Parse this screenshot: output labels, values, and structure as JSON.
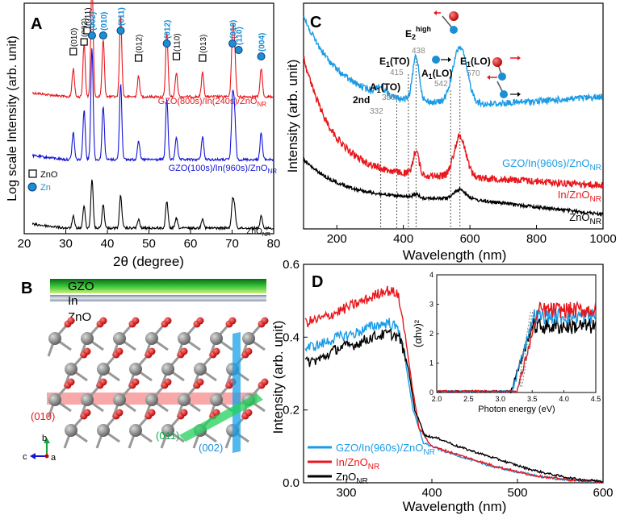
{
  "chart_data": [
    {
      "panel": "A",
      "type": "line",
      "panel_label": "A",
      "xlabel": "2θ (degree)",
      "ylabel": "Log scale Intensity (arb. unit)",
      "xlim": [
        20,
        80
      ],
      "xticks": [
        20,
        30,
        40,
        50,
        60,
        70,
        80
      ],
      "legend": [
        {
          "marker": "square",
          "label": "ZnO",
          "color": "#000000"
        },
        {
          "marker": "circle",
          "label": "Zn",
          "color": "#1a8fd6"
        }
      ],
      "series": [
        {
          "name": "GZO(800s)/In(240s)/ZnO_NR",
          "label_main": "GZO(800s)/In(240s)/ZnO",
          "label_sub": "NR",
          "color": "#e8171c",
          "offset": 2
        },
        {
          "name": "GZO(100s)/In(960s)/ZnO_NR",
          "label_main": "GZO(100s)/In(960s)/ZnO",
          "label_sub": "NR",
          "color": "#1414d6",
          "offset": 1
        },
        {
          "name": "ZnO_NR",
          "label_main": "ZnO",
          "label_sub": "NR",
          "color": "#000000",
          "offset": 0
        }
      ],
      "zno_peaks": [
        {
          "x": 31.8,
          "label": "(010)",
          "h": 0.35
        },
        {
          "x": 34.4,
          "label": "(002)",
          "h": 0.65
        },
        {
          "x": 36.3,
          "label": "(011)",
          "h": 0.7
        },
        {
          "x": 47.5,
          "label": "(012)",
          "h": 0.25
        },
        {
          "x": 56.6,
          "label": "(110)",
          "h": 0.3
        },
        {
          "x": 62.9,
          "label": "(013)",
          "h": 0.3
        }
      ],
      "zn_peaks": [
        {
          "x": 36.3,
          "label": "(002)",
          "h": 0.75
        },
        {
          "x": 39.0,
          "label": "(010)",
          "h": 0.7
        },
        {
          "x": 43.2,
          "label": "(011)",
          "h": 1.0
        },
        {
          "x": 54.3,
          "label": "(012)",
          "h": 0.8
        },
        {
          "x": 70.1,
          "label": "(013)",
          "h": 0.75
        },
        {
          "x": 70.6,
          "label": "(110)",
          "h": 0.55
        },
        {
          "x": 77.0,
          "label": "(004)",
          "h": 0.35
        }
      ]
    },
    {
      "panel": "B",
      "type": "diagram",
      "panel_label": "B",
      "layers": [
        "GZO",
        "In",
        "ZnO"
      ],
      "planes": [
        {
          "label": "(010)",
          "color": "#e8171c"
        },
        {
          "label": "(011)",
          "color": "#22c25a"
        },
        {
          "label": "(002)",
          "color": "#1a8fd6"
        }
      ],
      "axes": [
        "b",
        "c",
        "a"
      ]
    },
    {
      "panel": "C",
      "type": "line",
      "panel_label": "C",
      "xlabel": "Wavelength (nm)",
      "ylabel": "Intensity (arb. unit)",
      "xlim": [
        100,
        1000
      ],
      "xticks": [
        200,
        400,
        600,
        800,
        1000
      ],
      "modes": [
        {
          "label": "2nd",
          "value": "332",
          "x": 332
        },
        {
          "label": "A1(TO)",
          "value": "380",
          "x": 380
        },
        {
          "label": "E1(TO)",
          "value": "415",
          "x": 415
        },
        {
          "label": "E2high",
          "value": "438",
          "x": 438
        },
        {
          "label": "A1(LO)",
          "value": "542",
          "x": 542
        },
        {
          "label": "E1(LO)",
          "value": "570",
          "x": 570
        }
      ],
      "series": [
        {
          "name": "GZO/In(960s)/ZnO_NR",
          "label_main": "GZO/In(960s)/ZnO",
          "label_sub": "NR",
          "color": "#1a9be6"
        },
        {
          "name": "In/ZnO_NR",
          "label_main": "In/ZnO",
          "label_sub": "NR",
          "color": "#e8171c"
        },
        {
          "name": "ZnO_NR",
          "label_main": "ZnO",
          "label_sub": "NR",
          "color": "#000000"
        }
      ]
    },
    {
      "panel": "D",
      "type": "line",
      "panel_label": "D",
      "xlabel": "Wavelength (nm)",
      "ylabel": "Intensity (arb. unit)",
      "xlim": [
        250,
        600
      ],
      "ylim": [
        0.0,
        0.6
      ],
      "xticks": [
        300,
        400,
        500,
        600
      ],
      "yticks": [
        "0.0",
        "0.2",
        "0.4",
        "0.6"
      ],
      "series": [
        {
          "name": "GZO/In(960s)/ZnO_NR",
          "label_main": "GZO/In(960s)/ZnO",
          "label_sub": "NR",
          "color": "#1a9be6",
          "points": [
            [
              252,
              0.37
            ],
            [
              270,
              0.38
            ],
            [
              290,
              0.4
            ],
            [
              310,
              0.41
            ],
            [
              330,
              0.43
            ],
            [
              350,
              0.44
            ],
            [
              362,
              0.42
            ],
            [
              370,
              0.32
            ],
            [
              378,
              0.2
            ],
            [
              390,
              0.11
            ],
            [
              410,
              0.09
            ],
            [
              430,
              0.075
            ],
            [
              450,
              0.06
            ],
            [
              470,
              0.045
            ],
            [
              490,
              0.035
            ],
            [
              510,
              0.025
            ],
            [
              530,
              0.016
            ],
            [
              550,
              0.01
            ],
            [
              570,
              0.006
            ],
            [
              600,
              0.003
            ]
          ]
        },
        {
          "name": "In/ZnO_NR",
          "label_main": "In/ZnO",
          "label_sub": "NR",
          "color": "#e8171c",
          "points": [
            [
              252,
              0.44
            ],
            [
              270,
              0.45
            ],
            [
              290,
              0.47
            ],
            [
              310,
              0.49
            ],
            [
              330,
              0.51
            ],
            [
              345,
              0.53
            ],
            [
              360,
              0.52
            ],
            [
              368,
              0.42
            ],
            [
              376,
              0.28
            ],
            [
              385,
              0.15
            ],
            [
              400,
              0.1
            ],
            [
              420,
              0.085
            ],
            [
              440,
              0.07
            ],
            [
              460,
              0.055
            ],
            [
              480,
              0.042
            ],
            [
              500,
              0.03
            ],
            [
              520,
              0.02
            ],
            [
              540,
              0.013
            ],
            [
              560,
              0.008
            ],
            [
              600,
              0.003
            ]
          ]
        },
        {
          "name": "ZnO_NR",
          "label_main": "ZnO",
          "label_sub": "NR",
          "color": "#000000",
          "points": [
            [
              252,
              0.33
            ],
            [
              270,
              0.34
            ],
            [
              290,
              0.37
            ],
            [
              310,
              0.38
            ],
            [
              330,
              0.4
            ],
            [
              350,
              0.41
            ],
            [
              362,
              0.4
            ],
            [
              372,
              0.32
            ],
            [
              380,
              0.2
            ],
            [
              392,
              0.13
            ],
            [
              410,
              0.12
            ],
            [
              430,
              0.1
            ],
            [
              450,
              0.085
            ],
            [
              470,
              0.07
            ],
            [
              490,
              0.055
            ],
            [
              510,
              0.04
            ],
            [
              530,
              0.028
            ],
            [
              550,
              0.018
            ],
            [
              570,
              0.01
            ],
            [
              600,
              0.004
            ]
          ]
        }
      ],
      "inset": {
        "xlabel": "Photon energy (eV)",
        "ylabel": "(αhν)²",
        "xlim": [
          2.0,
          4.5
        ],
        "ylim": [
          0,
          4
        ],
        "xticks": [
          "2.0",
          "2.5",
          "3.0",
          "3.5",
          "4.0",
          "4.5"
        ],
        "yticks": [
          "0",
          "1",
          "2",
          "3",
          "4"
        ]
      }
    }
  ]
}
